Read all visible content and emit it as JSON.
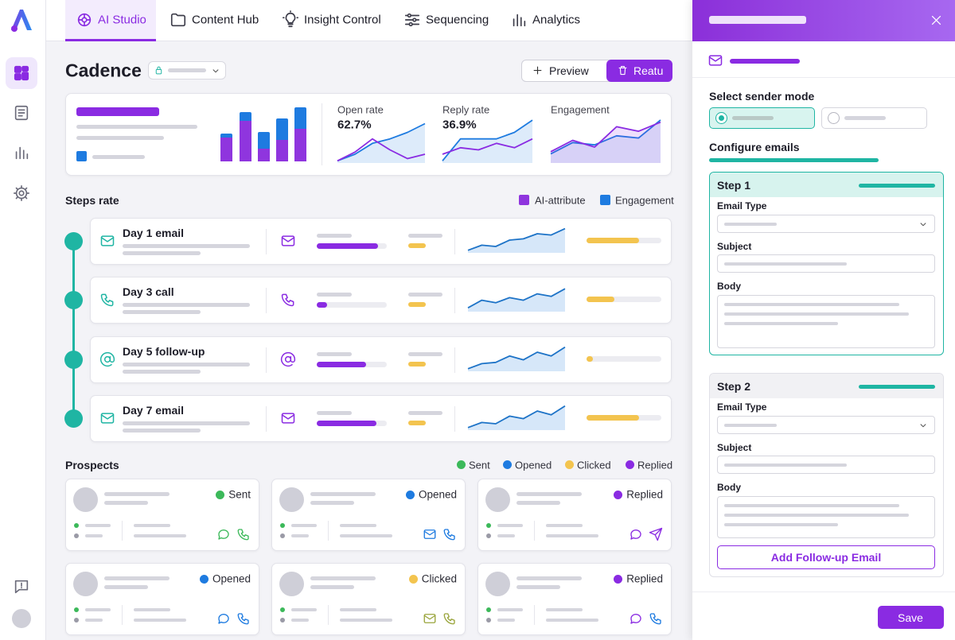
{
  "nav": {
    "tabs": [
      "AI Studio",
      "Content Hub",
      "Insight Control",
      "Sequencing",
      "Analytics"
    ]
  },
  "page": {
    "title": "Cadence",
    "buttons": [
      "Preview",
      "Reatu"
    ]
  },
  "metrics": [
    {
      "label": "Open rate",
      "value": "62.7%"
    },
    {
      "label": "Reply rate",
      "value": "36.9%"
    },
    {
      "label": "Engagement"
    }
  ],
  "steps": {
    "title": "Steps rate",
    "legend": [
      "AI-attribute",
      "Engagement"
    ],
    "items": [
      "Day 1 email",
      "Day 3 call",
      "Day 5 follow-up",
      "Day 7 email"
    ]
  },
  "prospects": {
    "title": "Prospects",
    "legend": [
      "Sent",
      "Opened",
      "Clicked",
      "Replied"
    ],
    "cards": [
      "Sent",
      "Opened",
      "Replied",
      "Opened",
      "Clicked",
      "Replied"
    ]
  },
  "panel": {
    "sender_mode": "Select sender mode",
    "configure": "Configure emails",
    "steps": [
      {
        "title": "Step 1",
        "fields": [
          "Email Type",
          "Subject",
          "Body"
        ]
      },
      {
        "title": "Step 2",
        "fields": [
          "Email Type",
          "Subject",
          "Body"
        ]
      }
    ],
    "add_button": "Add Follow-up Email",
    "save": "Save"
  }
}
